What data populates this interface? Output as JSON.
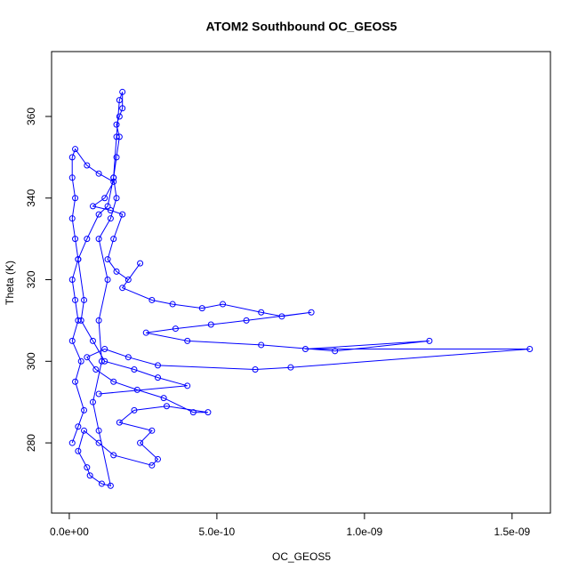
{
  "chart_data": {
    "type": "line",
    "title": "ATOM2 Southbound OC_GEOS5",
    "x_label": "OC_GEOS5",
    "y_label": "Theta (K)",
    "color": "#0000ff",
    "xlim": [
      -6e-11,
      1.63e-09
    ],
    "ylim": [
      262.8,
      375.9
    ],
    "xticks": [
      {
        "value": 0,
        "label": "0.0e+00"
      },
      {
        "value": 5e-10,
        "label": "5.0e-10"
      },
      {
        "value": 1e-09,
        "label": "1.0e-09"
      },
      {
        "value": 1.5e-09,
        "label": "1.5e-09"
      }
    ],
    "yticks": [
      280,
      300,
      320,
      340,
      360
    ],
    "x": [
      1e-11,
      3e-11,
      5e-11,
      2e-11,
      4e-11,
      1e-11,
      3e-11,
      2e-11,
      1e-11,
      3e-11,
      2e-11,
      1e-11,
      2e-11,
      1e-11,
      1e-11,
      2e-11,
      6e-11,
      1e-10,
      1.5e-10,
      1.2e-10,
      8e-11,
      1.4e-10,
      1.8e-10,
      1.5e-10,
      1.3e-10,
      1.6e-10,
      2e-10,
      2.4e-10,
      1.8e-10,
      2.8e-10,
      3.5e-10,
      4.5e-10,
      5.2e-10,
      6.5e-10,
      7.2e-10,
      8.2e-10,
      6e-10,
      4.8e-10,
      3.6e-10,
      2.6e-10,
      4e-10,
      6.5e-10,
      9e-10,
      1.22e-09,
      8e-10,
      1.56e-09,
      7.5e-10,
      6.3e-10,
      3e-10,
      2e-10,
      1.2e-10,
      6e-11,
      9e-11,
      1.5e-10,
      2.3e-10,
      3.2e-10,
      4.2e-10,
      4.7e-10,
      3.3e-10,
      2.2e-10,
      1.7e-10,
      2.8e-10,
      2.4e-10,
      3e-10,
      2.8e-10,
      1.5e-10,
      1e-10,
      5e-11,
      3e-11,
      6e-11,
      7e-11,
      1.1e-10,
      1.4e-10,
      1e-10,
      8e-11,
      1.1e-10,
      1e-10,
      1.3e-10,
      1e-10,
      1.4e-10,
      1.6e-10,
      1.5e-10,
      1.6e-10,
      1.7e-10,
      1.6e-10,
      1.7e-10,
      1.8e-10,
      1.8e-10,
      1.7e-10,
      1.6e-10,
      1.5e-10,
      1.3e-10,
      1e-10,
      6e-11,
      3e-11,
      5e-11,
      4e-11,
      8e-11,
      1.2e-10,
      2.2e-10,
      3e-10,
      4e-10,
      1e-10
    ],
    "values": [
      280,
      284,
      288,
      295,
      300,
      305,
      310,
      315,
      320,
      325,
      330,
      335,
      340,
      345,
      350,
      352,
      348,
      346,
      344,
      340,
      338,
      337,
      336,
      330,
      325,
      322,
      320,
      324,
      318,
      315,
      314,
      313,
      314,
      312,
      311,
      312,
      310,
      309,
      308,
      307,
      305,
      304,
      302.5,
      305,
      303,
      303,
      298.5,
      298,
      299,
      301,
      303,
      301,
      298,
      295,
      293,
      291,
      287.5,
      287.5,
      289,
      288,
      285,
      283,
      280,
      276,
      274.5,
      277,
      280,
      283,
      278,
      274,
      272,
      270,
      269.5,
      283,
      290,
      300,
      310,
      320,
      330,
      335,
      340,
      345,
      350,
      355,
      358,
      360,
      362,
      366,
      364,
      355,
      345,
      338,
      336,
      330,
      325,
      315,
      310,
      305,
      300,
      298,
      296,
      294,
      292
    ]
  }
}
